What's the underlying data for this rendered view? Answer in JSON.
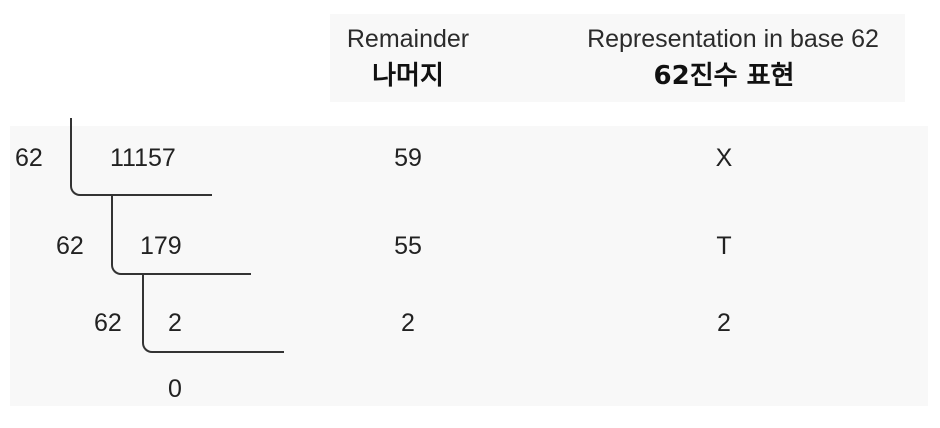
{
  "headers": {
    "remainder": "Remainder",
    "remainder_ko": "나머지",
    "representation": "Representation in base 62",
    "representation_ko": "62진수 표현"
  },
  "steps": [
    {
      "divisor": "62",
      "dividend": "11157",
      "remainder": "59",
      "base62": "X"
    },
    {
      "divisor": "62",
      "dividend": "179",
      "remainder": "55",
      "base62": "T"
    },
    {
      "divisor": "62",
      "dividend": "2",
      "remainder": "2",
      "base62": "2"
    }
  ],
  "final_quotient": "0"
}
